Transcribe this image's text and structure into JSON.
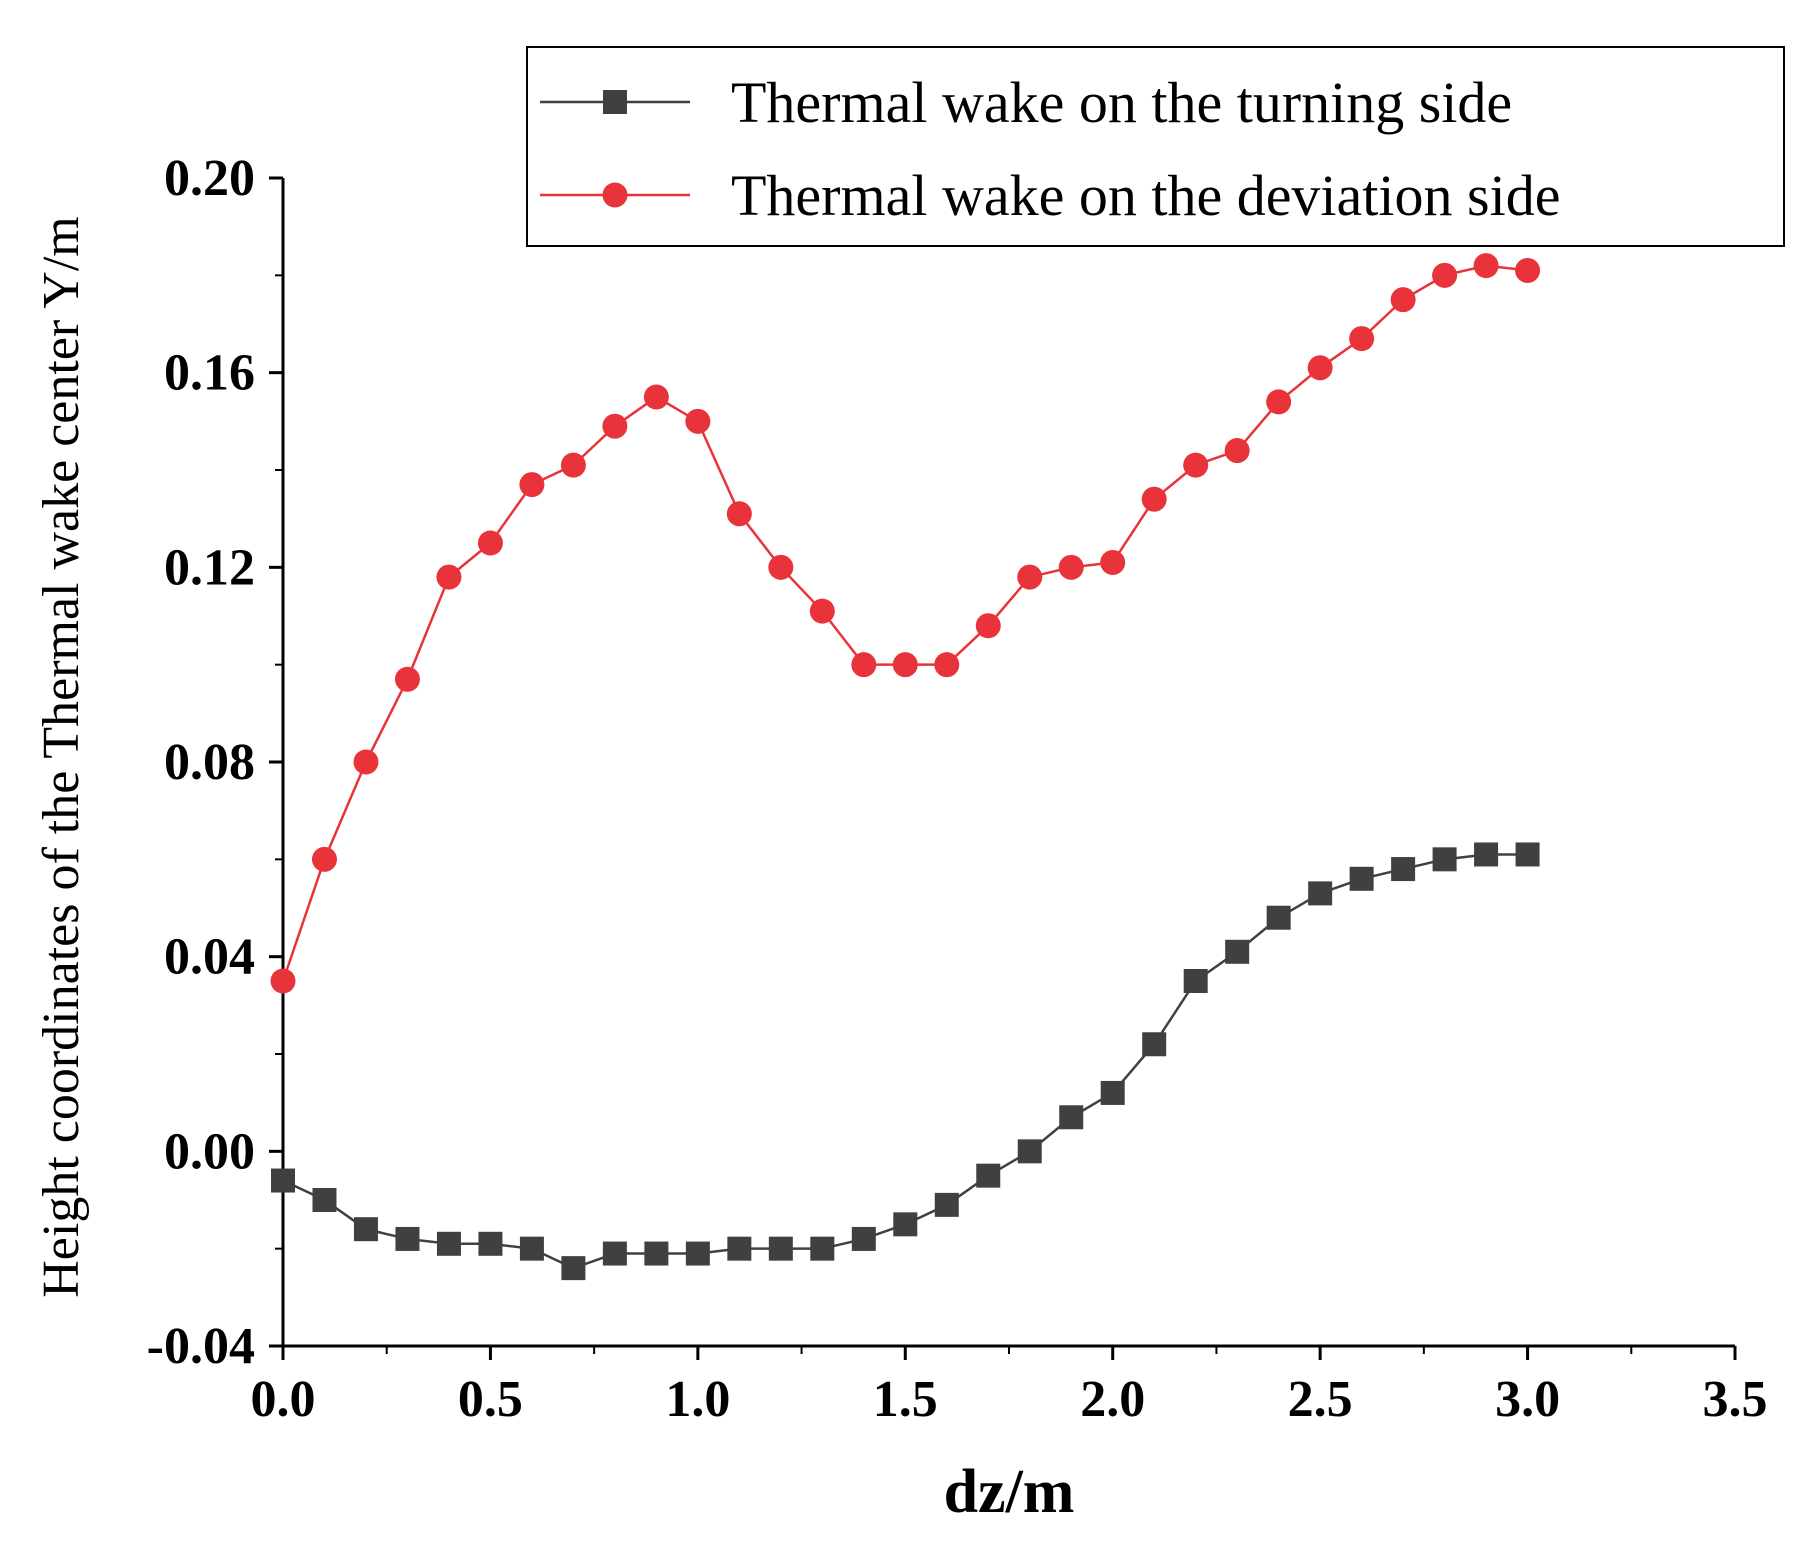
{
  "chart_data": {
    "type": "line",
    "title": "",
    "xlabel": "dz/m",
    "ylabel": "Height coordinates of the Thermal wake center Y/m",
    "xlim": [
      0,
      3.5
    ],
    "ylim": [
      -0.04,
      0.2
    ],
    "x_ticks": [
      "0.0",
      "0.5",
      "1.0",
      "1.5",
      "2.0",
      "2.5",
      "3.0",
      "3.5"
    ],
    "y_ticks": [
      "-0.04",
      "0.00",
      "0.04",
      "0.08",
      "0.12",
      "0.16",
      "0.20"
    ],
    "legend_position": "top-right",
    "series": [
      {
        "name": "Thermal wake on the turning side",
        "color": "#404040",
        "marker": "square",
        "x": [
          0.0,
          0.1,
          0.2,
          0.3,
          0.4,
          0.5,
          0.6,
          0.7,
          0.8,
          0.9,
          1.0,
          1.1,
          1.2,
          1.3,
          1.4,
          1.5,
          1.6,
          1.7,
          1.8,
          1.9,
          2.0,
          2.1,
          2.2,
          2.3,
          2.4,
          2.5,
          2.6,
          2.7,
          2.8,
          2.9,
          3.0
        ],
        "values": [
          -0.006,
          -0.01,
          -0.016,
          -0.018,
          -0.019,
          -0.019,
          -0.02,
          -0.024,
          -0.021,
          -0.021,
          -0.021,
          -0.02,
          -0.02,
          -0.02,
          -0.018,
          -0.015,
          -0.011,
          -0.005,
          0.0,
          0.007,
          0.012,
          0.022,
          0.035,
          0.041,
          0.048,
          0.053,
          0.056,
          0.058,
          0.06,
          0.061,
          0.061
        ]
      },
      {
        "name": "Thermal wake on the deviation side",
        "color": "#e8333a",
        "marker": "circle",
        "x": [
          0.0,
          0.1,
          0.2,
          0.3,
          0.4,
          0.5,
          0.6,
          0.7,
          0.8,
          0.9,
          1.0,
          1.1,
          1.2,
          1.3,
          1.4,
          1.5,
          1.6,
          1.7,
          1.8,
          1.9,
          2.0,
          2.1,
          2.2,
          2.3,
          2.4,
          2.5,
          2.6,
          2.7,
          2.8,
          2.9,
          3.0
        ],
        "values": [
          0.035,
          0.06,
          0.08,
          0.097,
          0.118,
          0.125,
          0.137,
          0.141,
          0.149,
          0.155,
          0.15,
          0.131,
          0.12,
          0.111,
          0.1,
          0.1,
          0.1,
          0.108,
          0.118,
          0.12,
          0.121,
          0.134,
          0.141,
          0.144,
          0.154,
          0.161,
          0.167,
          0.175,
          0.18,
          0.182,
          0.181
        ]
      }
    ]
  }
}
